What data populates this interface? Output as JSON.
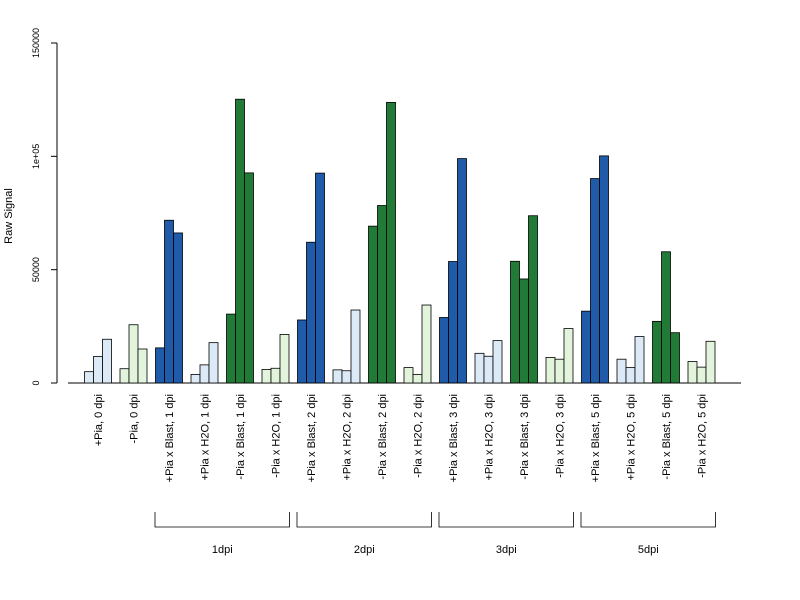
{
  "chart_data": {
    "type": "bar",
    "ylabel": "Raw Signal",
    "ylim": [
      0,
      150000
    ],
    "yticks": [
      {
        "value": 0,
        "label": "0"
      },
      {
        "value": 50000,
        "label": "50000"
      },
      {
        "value": 100000,
        "label": "1e+05"
      },
      {
        "value": 150000,
        "label": "150000"
      }
    ],
    "categories": [
      "+Pia, 0 dpi",
      "-Pia, 0 dpi",
      "+Pia x Blast, 1 dpi",
      "+Pia x H2O, 1 dpi",
      "-Pia x Blast, 1 dpi",
      "-Pia x H2O, 1 dpi",
      "+Pia x Blast, 2 dpi",
      "+Pia x H2O, 2 dpi",
      "-Pia x Blast, 2 dpi",
      "-Pia x H2O, 2 dpi",
      "+Pia x Blast, 3 dpi",
      "+Pia x H2O, 3 dpi",
      "-Pia x Blast, 3 dpi",
      "-Pia x H2O, 3 dpi",
      "+Pia x Blast, 5 dpi",
      "+Pia x H2O, 5 dpi",
      "-Pia x Blast, 5 dpi",
      "-Pia x H2O, 5 dpi"
    ],
    "group_colors": [
      "#dce9f7",
      "#e2f5dc",
      "#1f5ba8",
      "#dce9f7",
      "#217a35",
      "#e2f5dc",
      "#1f5ba8",
      "#dce9f7",
      "#217a35",
      "#e2f5dc",
      "#1f5ba8",
      "#dce9f7",
      "#217a35",
      "#e2f5dc",
      "#1f5ba8",
      "#dce9f7",
      "#217a35",
      "#e2f5dc"
    ],
    "values": [
      [
        5000,
        11700,
        19300
      ],
      [
        6300,
        25700,
        15000
      ],
      [
        15500,
        71800,
        66200
      ],
      [
        3800,
        8000,
        17800
      ],
      [
        30400,
        125200,
        92700
      ],
      [
        6000,
        6500,
        21400
      ],
      [
        27800,
        62100,
        92600
      ],
      [
        5800,
        5400,
        32200
      ],
      [
        69200,
        78300,
        123800
      ],
      [
        6800,
        3800,
        34400
      ],
      [
        28900,
        53600,
        99000
      ],
      [
        13100,
        11800,
        18700
      ],
      [
        53700,
        45900,
        73800
      ],
      [
        11300,
        10500,
        24000
      ],
      [
        31700,
        90200,
        100200
      ],
      [
        10500,
        6800,
        20500
      ],
      [
        27200,
        57900,
        22200
      ],
      [
        9500,
        7000,
        18400
      ]
    ],
    "brackets": [
      {
        "label": "1dpi",
        "from": 2,
        "to": 5
      },
      {
        "label": "2dpi",
        "from": 6,
        "to": 9
      },
      {
        "label": "3dpi",
        "from": 10,
        "to": 13
      },
      {
        "label": "5dpi",
        "from": 14,
        "to": 17
      }
    ],
    "grid": false,
    "legend": "none"
  }
}
